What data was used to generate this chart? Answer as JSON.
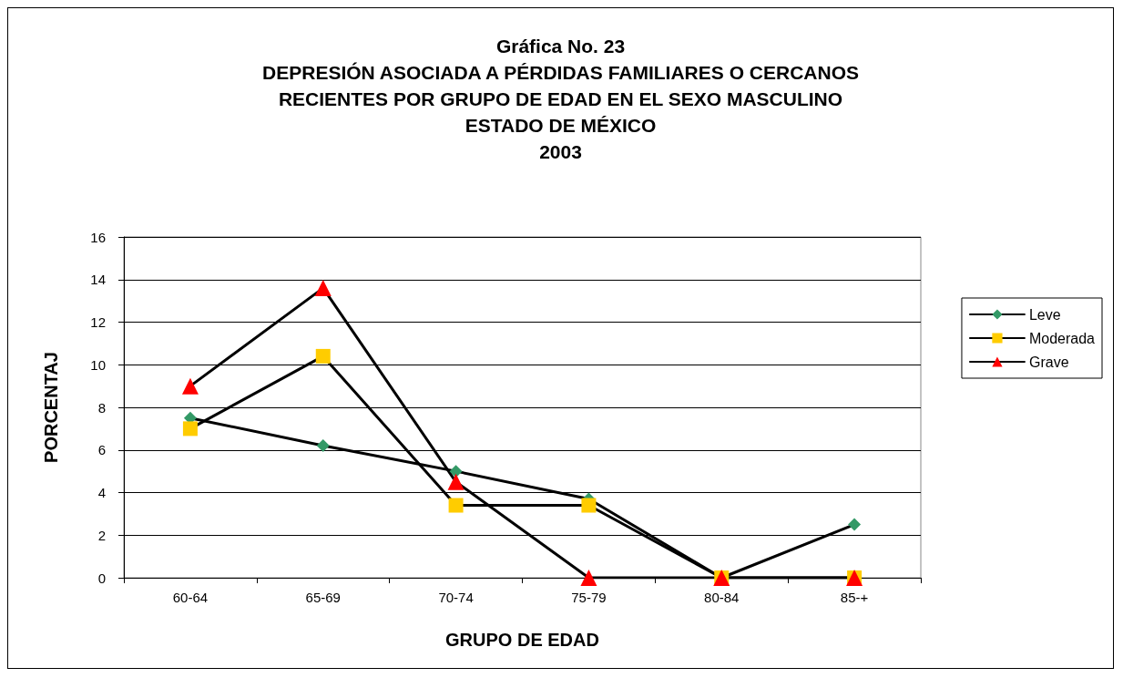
{
  "chart_data": {
    "type": "line",
    "title": "Gráfica No. 23\nDEPRESIÓN ASOCIADA A PÉRDIDAS FAMILIARES O CERCANOS\nRECIENTES POR GRUPO DE EDAD EN EL SEXO MASCULINO\nESTADO DE MÉXICO\n2003",
    "xlabel": "GRUPO DE EDAD",
    "ylabel": "PORCENTAJ",
    "categories": [
      "60-64",
      "65-69",
      "70-74",
      "75-79",
      "80-84",
      "85-+"
    ],
    "series": [
      {
        "name": "Leve",
        "color": "#339966",
        "marker": "diamond",
        "values": [
          7.5,
          6.2,
          5.0,
          3.7,
          0,
          2.5
        ]
      },
      {
        "name": "Moderada",
        "color": "#ffcc00",
        "marker": "square",
        "values": [
          7.0,
          10.4,
          3.4,
          3.4,
          0,
          0
        ]
      },
      {
        "name": "Grave",
        "color": "#ff0000",
        "marker": "triangle",
        "values": [
          9.0,
          13.6,
          4.5,
          0,
          0,
          0
        ]
      }
    ],
    "ylim": [
      0,
      16
    ],
    "yticks": [
      0,
      2,
      4,
      6,
      8,
      10,
      12,
      14,
      16
    ],
    "grid": "y",
    "legend": "right",
    "line_style": "solid"
  }
}
